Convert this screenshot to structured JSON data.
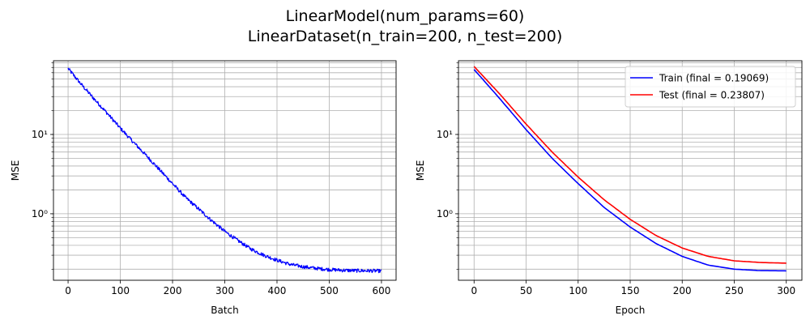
{
  "figure": {
    "suptitle_line1": "LinearModel(num_params=60)",
    "suptitle_line2": "LinearDataset(n_train=200, n_test=200)"
  },
  "chart_data": [
    {
      "type": "line",
      "xlabel": "Batch",
      "ylabel": "MSE",
      "yscale": "log",
      "xlim": [
        -28,
        628
      ],
      "ylim": [
        0.145,
        85
      ],
      "xticks": [
        0,
        100,
        200,
        300,
        400,
        500,
        600
      ],
      "xtick_labels": [
        "0",
        "100",
        "200",
        "300",
        "400",
        "500",
        "600"
      ],
      "yticks": [
        1,
        10
      ],
      "ytick_labels": [
        "10⁰",
        "10¹"
      ],
      "grid": true,
      "legend": null,
      "series": [
        {
          "color": "#0000ff",
          "noisy": true,
          "x": [
            0,
            25,
            50,
            75,
            100,
            125,
            150,
            175,
            200,
            225,
            250,
            275,
            300,
            325,
            350,
            375,
            400,
            425,
            450,
            475,
            500,
            525,
            550,
            575,
            600
          ],
          "y": [
            68,
            43,
            28,
            18.5,
            12,
            8.0,
            5.4,
            3.6,
            2.4,
            1.6,
            1.15,
            0.82,
            0.6,
            0.46,
            0.36,
            0.3,
            0.26,
            0.23,
            0.215,
            0.205,
            0.198,
            0.194,
            0.192,
            0.191,
            0.19
          ]
        }
      ]
    },
    {
      "type": "line",
      "xlabel": "Epoch",
      "ylabel": "MSE",
      "yscale": "log",
      "xlim": [
        -15,
        315
      ],
      "ylim": [
        0.145,
        85
      ],
      "xticks": [
        0,
        50,
        100,
        150,
        200,
        250,
        300
      ],
      "xtick_labels": [
        "0",
        "50",
        "100",
        "150",
        "200",
        "250",
        "300"
      ],
      "yticks": [
        1,
        10
      ],
      "ytick_labels": [
        "10⁰",
        "10¹"
      ],
      "grid": true,
      "legend": "top-right",
      "series": [
        {
          "name": "Train (final = 0.19069)",
          "color": "#0000ff",
          "x": [
            0,
            25,
            50,
            75,
            100,
            125,
            150,
            175,
            200,
            225,
            250,
            275,
            300
          ],
          "y": [
            66,
            28,
            11.5,
            5.0,
            2.4,
            1.2,
            0.68,
            0.42,
            0.29,
            0.225,
            0.2,
            0.192,
            0.19069
          ]
        },
        {
          "name": "Test (final = 0.23807)",
          "color": "#ff0000",
          "x": [
            0,
            25,
            50,
            75,
            100,
            125,
            150,
            175,
            200,
            225,
            250,
            275,
            300
          ],
          "y": [
            72,
            32,
            13.5,
            6.0,
            2.9,
            1.5,
            0.85,
            0.53,
            0.37,
            0.29,
            0.255,
            0.243,
            0.23807
          ]
        }
      ]
    }
  ]
}
